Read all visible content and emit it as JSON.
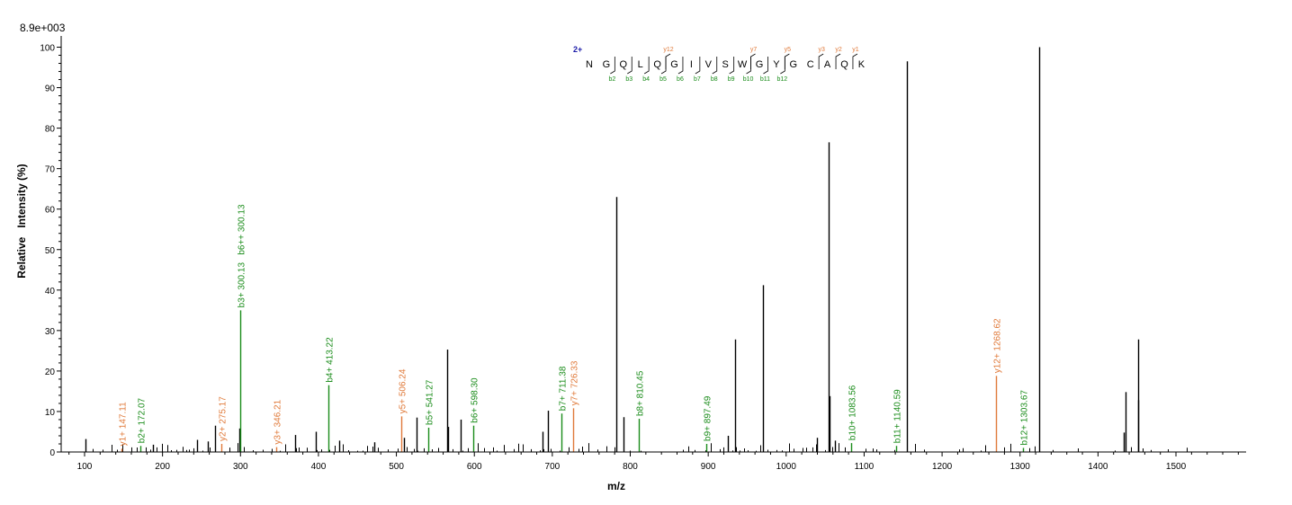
{
  "chart_data": {
    "type": "bar",
    "scale_label": "8.9e+003",
    "xlabel": "m/z",
    "ylabel": "Relative   Intensity (%)",
    "xlim": [
      70,
      1590
    ],
    "ylim": [
      0,
      101
    ],
    "x_ticks": [
      100,
      200,
      300,
      400,
      500,
      600,
      700,
      800,
      900,
      1000,
      1100,
      1200,
      1300,
      1400,
      1500
    ],
    "y_ticks": [
      0,
      10,
      20,
      30,
      40,
      50,
      60,
      70,
      80,
      90,
      100
    ],
    "colors": {
      "unmatched": "#000000",
      "b_ion": "#1a8c1a",
      "y_ion": "#e07a3a",
      "charge": "#1a1aa8"
    },
    "annotated_peaks": [
      {
        "mz": 147.11,
        "intensity": 0.8,
        "ion": "y",
        "label": "y1+ 147.11"
      },
      {
        "mz": 172.07,
        "intensity": 1.5,
        "ion": "b",
        "label": "b2+ 172.07"
      },
      {
        "mz": 275.17,
        "intensity": 2.0,
        "ion": "y",
        "label": "y2+ 275.17"
      },
      {
        "mz": 300.13,
        "intensity": 35.0,
        "ion": "b",
        "label": "b3+ 300.13   b6++ 300.13"
      },
      {
        "mz": 346.21,
        "intensity": 1.2,
        "ion": "y",
        "label": "y3+ 346.21"
      },
      {
        "mz": 413.22,
        "intensity": 16.5,
        "ion": "b",
        "label": "b4+ 413.22"
      },
      {
        "mz": 506.24,
        "intensity": 8.8,
        "ion": "y",
        "label": "y5+ 506.24"
      },
      {
        "mz": 541.27,
        "intensity": 6.0,
        "ion": "b",
        "label": "b5+ 541.27"
      },
      {
        "mz": 598.3,
        "intensity": 6.5,
        "ion": "b",
        "label": "b6+ 598.30"
      },
      {
        "mz": 711.38,
        "intensity": 9.5,
        "ion": "b",
        "label": "b7+ 711.38"
      },
      {
        "mz": 726.33,
        "intensity": 10.8,
        "ion": "y",
        "label": "y7+ 726.33"
      },
      {
        "mz": 810.45,
        "intensity": 8.2,
        "ion": "b",
        "label": "b8+ 810.45"
      },
      {
        "mz": 897.49,
        "intensity": 2.0,
        "ion": "b",
        "label": "b9+ 897.49"
      },
      {
        "mz": 1083.56,
        "intensity": 2.2,
        "ion": "b",
        "label": "b10+ 1083.56"
      },
      {
        "mz": 1140.59,
        "intensity": 1.5,
        "ion": "b",
        "label": "b11+ 1140.59"
      },
      {
        "mz": 1268.62,
        "intensity": 18.8,
        "ion": "y",
        "label": "y12+ 1268.62"
      },
      {
        "mz": 1303.67,
        "intensity": 1.0,
        "ion": "b",
        "label": "b12+ 1303.67"
      }
    ],
    "unannotated_peaks": [
      {
        "mz": 101,
        "intensity": 3.2
      },
      {
        "mz": 188,
        "intensity": 1.8
      },
      {
        "mz": 244,
        "intensity": 3.0
      },
      {
        "mz": 258,
        "intensity": 2.6
      },
      {
        "mz": 267,
        "intensity": 6.5
      },
      {
        "mz": 299,
        "intensity": 5.8
      },
      {
        "mz": 370,
        "intensity": 4.2
      },
      {
        "mz": 397,
        "intensity": 5.0
      },
      {
        "mz": 427,
        "intensity": 2.8
      },
      {
        "mz": 472,
        "intensity": 2.4
      },
      {
        "mz": 510,
        "intensity": 3.5
      },
      {
        "mz": 526,
        "intensity": 8.5
      },
      {
        "mz": 565,
        "intensity": 25.3
      },
      {
        "mz": 566,
        "intensity": 6.2
      },
      {
        "mz": 582,
        "intensity": 8.0
      },
      {
        "mz": 687,
        "intensity": 5.0
      },
      {
        "mz": 694,
        "intensity": 10.2
      },
      {
        "mz": 782,
        "intensity": 63.0
      },
      {
        "mz": 791,
        "intensity": 8.6
      },
      {
        "mz": 925,
        "intensity": 4.0
      },
      {
        "mz": 934,
        "intensity": 27.8
      },
      {
        "mz": 970,
        "intensity": 41.2
      },
      {
        "mz": 1039,
        "intensity": 3.5
      },
      {
        "mz": 1055,
        "intensity": 76.5
      },
      {
        "mz": 1056,
        "intensity": 13.8
      },
      {
        "mz": 1063,
        "intensity": 2.8
      },
      {
        "mz": 1155,
        "intensity": 96.5
      },
      {
        "mz": 1324,
        "intensity": 100.0
      },
      {
        "mz": 1433,
        "intensity": 4.8
      },
      {
        "mz": 1435,
        "intensity": 14.8
      },
      {
        "mz": 1451,
        "intensity": 27.8
      },
      {
        "mz": 1452,
        "intensity": 12.8
      }
    ],
    "sequence": {
      "charge": "2+",
      "residues": [
        "N",
        "G",
        "Q",
        "L",
        "Q",
        "G",
        "I",
        "V",
        "S",
        "W",
        "G",
        "Y",
        "G",
        "C",
        "A",
        "Q",
        "K"
      ],
      "b_ions": [
        {
          "after": 2,
          "label": "b2"
        },
        {
          "after": 3,
          "label": "b3"
        },
        {
          "after": 4,
          "label": "b4"
        },
        {
          "after": 5,
          "label": "b5"
        },
        {
          "after": 6,
          "label": "b6"
        },
        {
          "after": 7,
          "label": "b7"
        },
        {
          "after": 8,
          "label": "b8"
        },
        {
          "after": 9,
          "label": "b9"
        },
        {
          "after": 10,
          "label": "b10"
        },
        {
          "after": 11,
          "label": "b11"
        },
        {
          "after": 12,
          "label": "b12"
        }
      ],
      "y_ions": [
        {
          "after": 5,
          "label": "y12"
        },
        {
          "after": 10,
          "label": "y7"
        },
        {
          "after": 12,
          "label": "y5"
        },
        {
          "after": 14,
          "label": "y3"
        },
        {
          "after": 15,
          "label": "y2"
        },
        {
          "after": 16,
          "label": "y1"
        }
      ]
    }
  }
}
